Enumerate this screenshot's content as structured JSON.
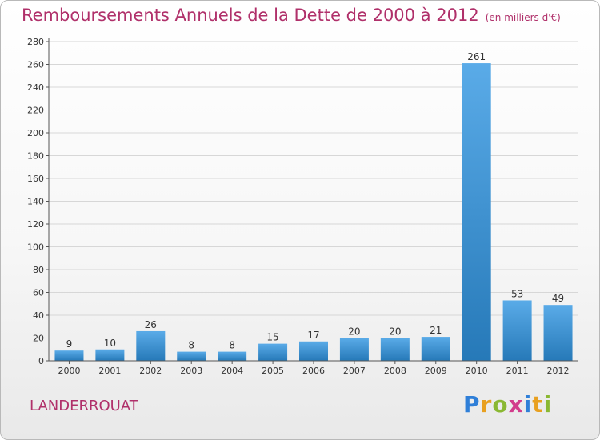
{
  "header": {
    "title": "Remboursements Annuels de la Dette de 2000 à 2012",
    "unit": "(en milliers d'€)"
  },
  "footer": {
    "commune": "LANDERROUAT",
    "logo": {
      "letters": [
        "P",
        "r",
        "o",
        "x",
        "i",
        "t",
        "i"
      ],
      "colors": [
        "#2f7fd8",
        "#e8a020",
        "#8ab832",
        "#d23c8c",
        "#2f7fd8",
        "#e8a020",
        "#8ab832"
      ]
    }
  },
  "colors": {
    "title": "#b0306a",
    "bar_light": "#5aabe8",
    "bar_dark": "#2679b8",
    "grid": "#d7d7d7",
    "axis": "#555555"
  },
  "chart_data": {
    "type": "bar",
    "title": "Remboursements Annuels de la Dette de 2000 à 2012",
    "subtitle": "(en milliers d'€)",
    "categories": [
      "2000",
      "2001",
      "2002",
      "2003",
      "2004",
      "2005",
      "2006",
      "2007",
      "2008",
      "2009",
      "2010",
      "2011",
      "2012"
    ],
    "values": [
      9,
      10,
      26,
      8,
      8,
      15,
      17,
      20,
      20,
      21,
      261,
      53,
      49
    ],
    "ylim": [
      0,
      280
    ],
    "yticks": [
      0,
      20,
      40,
      60,
      80,
      100,
      120,
      140,
      160,
      180,
      200,
      220,
      240,
      260,
      280
    ],
    "grid": true,
    "data_labels": true
  }
}
